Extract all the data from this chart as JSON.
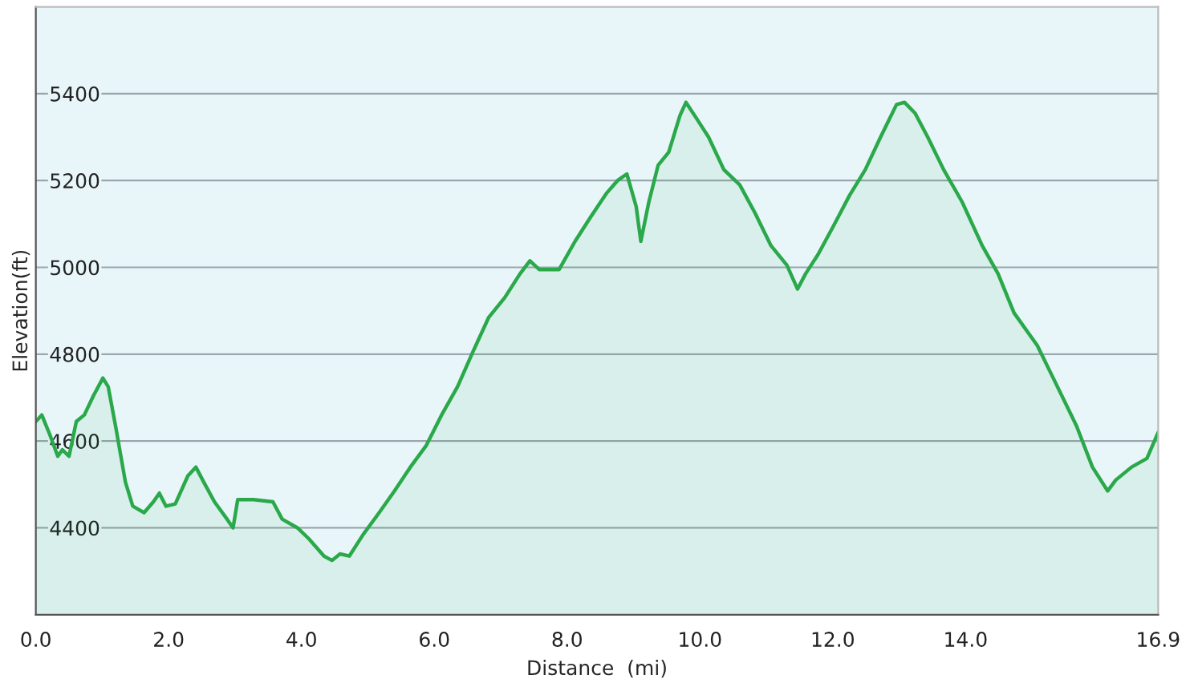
{
  "chart_data": {
    "type": "area",
    "xlabel": "Distance  (mi)",
    "ylabel": "Elevation(ft)",
    "xlim": [
      0,
      16.9
    ],
    "ylim": [
      4200,
      5600
    ],
    "xticks": [
      {
        "value": 0,
        "label": "0.0"
      },
      {
        "value": 2,
        "label": "2.0"
      },
      {
        "value": 4,
        "label": "4.0"
      },
      {
        "value": 6,
        "label": "6.0"
      },
      {
        "value": 8,
        "label": "8.0"
      },
      {
        "value": 10,
        "label": "10.0"
      },
      {
        "value": 12,
        "label": "12.0"
      },
      {
        "value": 14,
        "label": "14.0"
      },
      {
        "value": 16.9,
        "label": "16.9"
      }
    ],
    "yticks": [
      4400,
      4600,
      4800,
      5000,
      5200,
      5400
    ],
    "grid": "y",
    "marker": "none",
    "line_style": "solid",
    "legend": false,
    "series": [
      {
        "color": "#2aa84a",
        "x": [
          0,
          0.09,
          0.21,
          0.33,
          0.4,
          0.5,
          0.61,
          0.73,
          0.87,
          1.01,
          1.09,
          1.2,
          1.35,
          1.46,
          1.63,
          1.77,
          1.86,
          1.96,
          2.1,
          2.29,
          2.41,
          2.53,
          2.69,
          2.88,
          2.97,
          3.04,
          3.28,
          3.57,
          3.71,
          3.94,
          4.11,
          4.34,
          4.46,
          4.58,
          4.72,
          4.93,
          5.17,
          5.4,
          5.64,
          5.88,
          6.11,
          6.35,
          6.58,
          6.82,
          7.06,
          7.29,
          7.44,
          7.58,
          7.72,
          7.88,
          8.12,
          8.35,
          8.59,
          8.76,
          8.9,
          9.04,
          9.11,
          9.23,
          9.37,
          9.53,
          9.7,
          9.79,
          9.94,
          10.13,
          10.36,
          10.6,
          10.83,
          11.07,
          11.31,
          11.47,
          11.59,
          11.78,
          12.01,
          12.25,
          12.49,
          12.72,
          12.96,
          13.08,
          13.24,
          13.43,
          13.67,
          13.95,
          14.25,
          14.49,
          14.73,
          15.08,
          15.32,
          15.67,
          15.91,
          16.14,
          16.26,
          16.5,
          16.73,
          16.9
        ],
        "values": [
          4645,
          4660,
          4615,
          4565,
          4580,
          4565,
          4645,
          4660,
          4705,
          4745,
          4725,
          4635,
          4505,
          4450,
          4435,
          4460,
          4480,
          4450,
          4455,
          4520,
          4540,
          4505,
          4460,
          4420,
          4400,
          4465,
          4465,
          4460,
          4420,
          4400,
          4375,
          4335,
          4325,
          4340,
          4335,
          4385,
          4435,
          4485,
          4540,
          4590,
          4660,
          4725,
          4805,
          4885,
          4930,
          4985,
          5015,
          4995,
          4995,
          4995,
          5060,
          5115,
          5170,
          5200,
          5215,
          5140,
          5060,
          5150,
          5235,
          5265,
          5350,
          5380,
          5345,
          5300,
          5225,
          5190,
          5125,
          5050,
          5005,
          4950,
          4985,
          5030,
          5095,
          5165,
          5225,
          5300,
          5375,
          5380,
          5355,
          5300,
          5225,
          5150,
          5050,
          4985,
          4895,
          4820,
          4745,
          4635,
          4540,
          4485,
          4510,
          4540,
          4560,
          4620
        ]
      }
    ]
  }
}
